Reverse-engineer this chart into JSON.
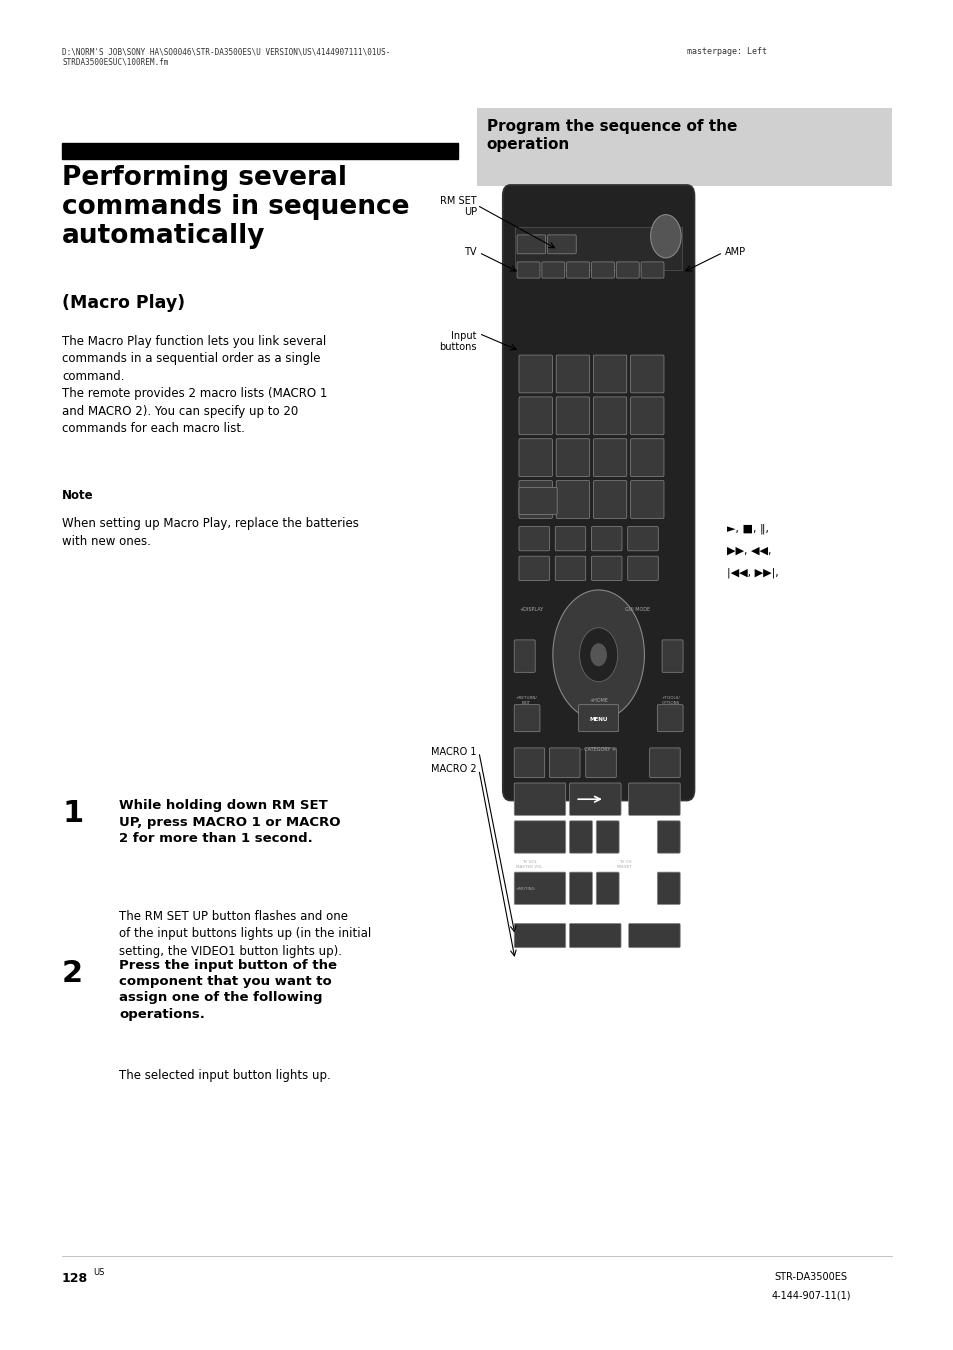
{
  "bg_color": "#ffffff",
  "page_width": 9.54,
  "page_height": 13.5,
  "header_text": "D:\\NORM'S JOB\\SONY HA\\SO0046\\STR-DA3500ES\\U VERSION\\US\\4144907111\\01US-\nSTRDA3500ESUC\\100REM.fm",
  "header_right": "masterpage: Left",
  "main_title": "Performing several\ncommands in sequence\nautomatically",
  "subtitle": "(Macro Play)",
  "section_header": "Program the sequence of the\noperation",
  "section_header_bg": "#d0d0d0",
  "body_text1": "The Macro Play function lets you link several\ncommands in a sequential order as a single\ncommand.\nThe remote provides 2 macro lists (MACRO 1\nand MACRO 2). You can specify up to 20\ncommands for each macro list.",
  "note_label": "Note",
  "note_text": "When setting up Macro Play, replace the batteries\nwith new ones.",
  "step1_num": "1",
  "step1_bold": "While holding down RM SET\nUP, press MACRO 1 or MACRO\n2 for more than 1 second.",
  "step1_text": "The RM SET UP button flashes and one\nof the input buttons lights up (in the initial\nsetting, the VIDEO1 button lights up).",
  "step2_num": "2",
  "step2_bold": "Press the input button of the\ncomponent that you want to\nassign one of the following\noperations.",
  "step2_text": "The selected input button lights up.",
  "page_num": "128",
  "page_num_super": "US",
  "footer_right1": "STR-DA3500ES",
  "footer_right2": "4-144-907-11(1)",
  "label_rm_set_up": "RM SET\nUP",
  "label_tv": "TV",
  "label_input_buttons": "Input\nbuttons",
  "label_amp": "AMP",
  "label_macro1": "MACRO 1",
  "label_macro2": "MACRO 2",
  "title_bar_color": "#000000"
}
